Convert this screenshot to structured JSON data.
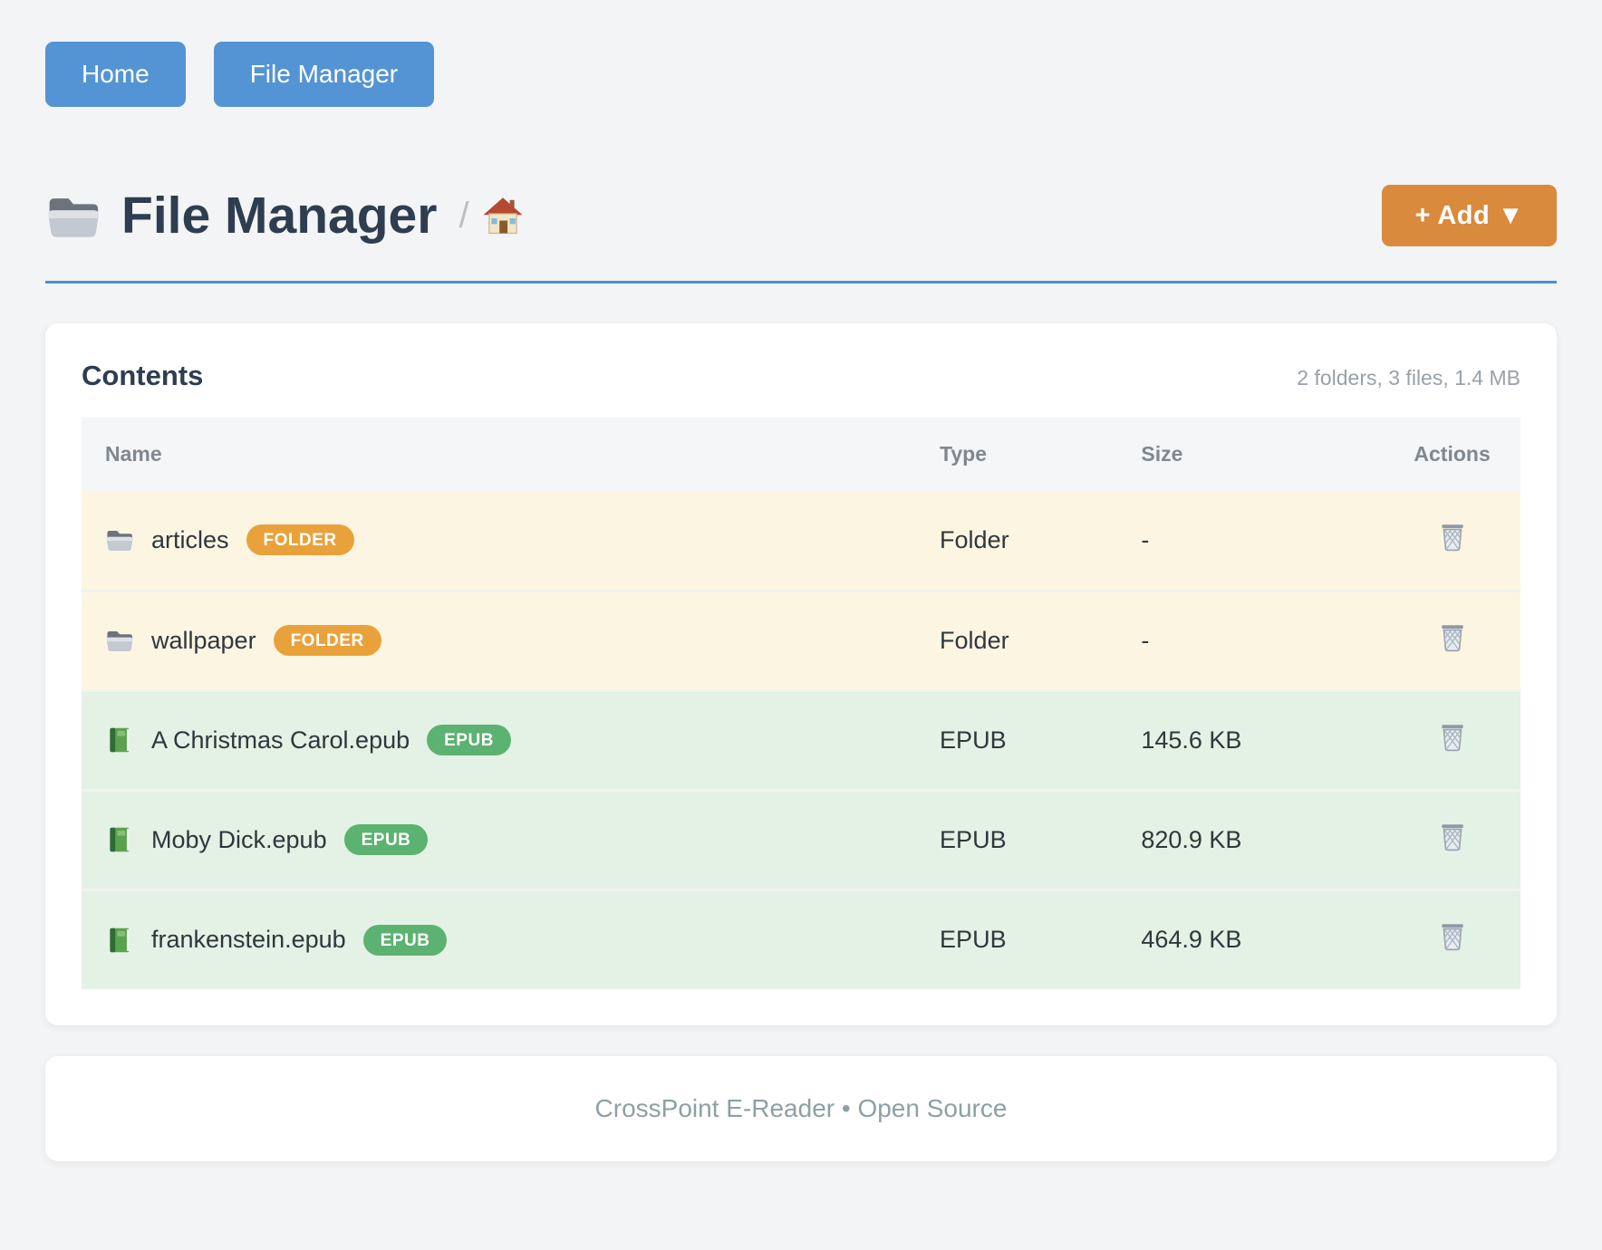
{
  "nav": {
    "buttons": [
      {
        "label": "Home"
      },
      {
        "label": "File Manager"
      }
    ]
  },
  "header": {
    "title": "File Manager",
    "breadcrumb_separator": "/",
    "add_button_label": "+ Add ▼"
  },
  "icons": {
    "title": "folder-emoji",
    "breadcrumb_home": "house-emoji",
    "row_folder": "folder-emoji",
    "row_epub": "green-book-emoji",
    "action": "wastebasket-emoji"
  },
  "colors": {
    "nav_blue": "#5494d4",
    "rule_blue": "#4a8fd4",
    "add_orange": "#d98a3d",
    "badge_folder_orange": "#e9a23b",
    "badge_epub_green": "#5cb270",
    "row_folder_bg": "#fcf5e1",
    "row_epub_bg": "#e4f1e5"
  },
  "contents": {
    "heading": "Contents",
    "summary": "2 folders, 3 files, 1.4 MB",
    "columns": [
      "Name",
      "Type",
      "Size",
      "Actions"
    ],
    "rows": [
      {
        "icon": "folder",
        "kind": "folder",
        "name": "articles",
        "badge": "FOLDER",
        "type": "Folder",
        "size": "-"
      },
      {
        "icon": "folder",
        "kind": "folder",
        "name": "wallpaper",
        "badge": "FOLDER",
        "type": "Folder",
        "size": "-"
      },
      {
        "icon": "book",
        "kind": "epub",
        "name": "A Christmas Carol.epub",
        "badge": "EPUB",
        "type": "EPUB",
        "size": "145.6 KB"
      },
      {
        "icon": "book",
        "kind": "epub",
        "name": "Moby Dick.epub",
        "badge": "EPUB",
        "type": "EPUB",
        "size": "820.9 KB"
      },
      {
        "icon": "book",
        "kind": "epub",
        "name": "frankenstein.epub",
        "badge": "EPUB",
        "type": "EPUB",
        "size": "464.9 KB"
      }
    ]
  },
  "footer": {
    "text": "CrossPoint E-Reader • Open Source"
  }
}
